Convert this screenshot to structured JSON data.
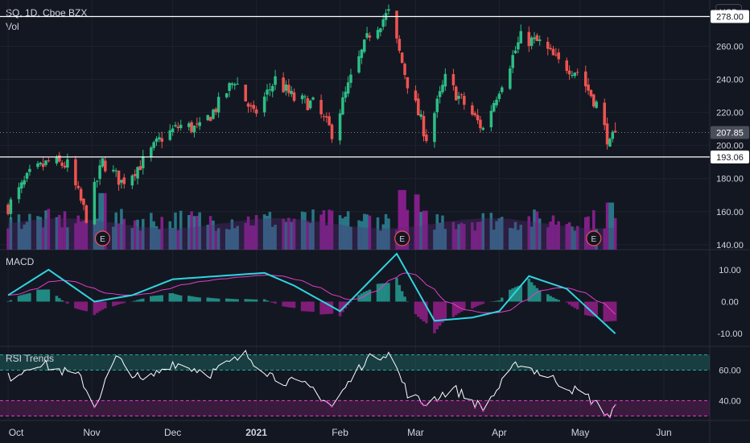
{
  "header": {
    "symbol_line": "SQ, 1D, Cboe BZX",
    "volume_label": "Vol",
    "currency_button": "USD"
  },
  "colors": {
    "background": "#131722",
    "up": "#26a69a",
    "up_candle": "#2ebd85",
    "down": "#ef5350",
    "volume_up": "#2a7a8c",
    "volume_down": "#8a1f8f",
    "macd_line": "#2fd5e0",
    "signal_line": "#e040c8",
    "rsi_line": "#ffffff",
    "rsi_upper_band": "#1f6f68",
    "rsi_lower_band": "#6a2060",
    "hline": "#ffffff",
    "grid": "#1e222d"
  },
  "chart_data": [
    {
      "type": "candlestick",
      "pane": "price",
      "y_axis": {
        "ticks": [
          140,
          160,
          180,
          200,
          220,
          240,
          260,
          278
        ],
        "tick_labels": [
          "140.00",
          "160.00",
          "180.00",
          "200.00",
          "220.00",
          "240.00",
          "260.00"
        ],
        "range": [
          137,
          288
        ]
      },
      "x_axis": {
        "tick_labels": [
          "Oct",
          "Nov",
          "Dec",
          "2021",
          "Feb",
          "Mar",
          "Apr",
          "May",
          "Jun"
        ]
      },
      "horizontal_lines": [
        {
          "value": 278.0,
          "label": "278.00"
        },
        {
          "value": 193.06,
          "label": "193.06"
        }
      ],
      "last_price": {
        "value": 207.85,
        "label": "207.85"
      },
      "earnings_markers": {
        "text": "E",
        "months": [
          "Nov",
          "Feb",
          "May"
        ]
      },
      "close_anchors": [
        [
          "2020-10-01",
          163
        ],
        [
          "2020-10-09",
          182
        ],
        [
          "2020-10-16",
          190
        ],
        [
          "2020-10-23",
          188
        ],
        [
          "2020-10-30",
          157
        ],
        [
          "2020-11-05",
          190
        ],
        [
          "2020-11-12",
          178
        ],
        [
          "2020-11-20",
          190
        ],
        [
          "2020-11-27",
          205
        ],
        [
          "2020-12-04",
          212
        ],
        [
          "2020-12-11",
          210
        ],
        [
          "2020-12-18",
          225
        ],
        [
          "2020-12-24",
          240
        ],
        [
          "2020-12-31",
          218
        ],
        [
          "2021-01-08",
          240
        ],
        [
          "2021-01-15",
          228
        ],
        [
          "2021-01-22",
          225
        ],
        [
          "2021-01-29",
          208
        ],
        [
          "2021-02-05",
          240
        ],
        [
          "2021-02-12",
          268
        ],
        [
          "2021-02-19",
          280
        ],
        [
          "2021-02-26",
          238
        ],
        [
          "2021-03-05",
          205
        ],
        [
          "2021-03-12",
          240
        ],
        [
          "2021-03-19",
          225
        ],
        [
          "2021-03-26",
          210
        ],
        [
          "2021-04-01",
          235
        ],
        [
          "2021-04-09",
          265
        ],
        [
          "2021-04-16",
          262
        ],
        [
          "2021-04-23",
          250
        ],
        [
          "2021-04-30",
          245
        ],
        [
          "2021-05-07",
          225
        ],
        [
          "2021-05-12",
          200
        ],
        [
          "2021-05-14",
          207.85
        ]
      ]
    },
    {
      "type": "bar",
      "pane": "volume",
      "series_name": "Vol",
      "note": "relative volume heights 0-1",
      "spikes": [
        [
          "2020-11-05",
          0.9
        ],
        [
          "2021-02-24",
          0.95
        ],
        [
          "2021-03-01",
          0.88
        ],
        [
          "2021-05-12",
          0.75
        ]
      ]
    },
    {
      "type": "line",
      "pane": "macd",
      "title": "MACD",
      "y_axis": {
        "tick_labels": [
          "10.00",
          "0.00",
          "-10.00"
        ],
        "ticks": [
          10,
          0,
          -10
        ],
        "range": [
          -14,
          16
        ]
      },
      "anchors": [
        [
          "2020-10-01",
          2
        ],
        [
          "2020-10-16",
          10
        ],
        [
          "2020-11-02",
          0
        ],
        [
          "2020-11-16",
          2
        ],
        [
          "2020-12-01",
          7
        ],
        [
          "2020-12-18",
          8
        ],
        [
          "2021-01-04",
          9
        ],
        [
          "2021-01-15",
          5
        ],
        [
          "2021-02-01",
          -3
        ],
        [
          "2021-02-22",
          15
        ],
        [
          "2021-03-08",
          -6
        ],
        [
          "2021-03-22",
          -5
        ],
        [
          "2021-04-01",
          -3
        ],
        [
          "2021-04-12",
          8
        ],
        [
          "2021-04-26",
          4
        ],
        [
          "2021-05-14",
          -10
        ]
      ]
    },
    {
      "type": "line",
      "pane": "rsi",
      "title": "RSI Trends",
      "y_axis": {
        "tick_labels": [
          "60.00",
          "40.00"
        ],
        "ticks": [
          60,
          40
        ],
        "bands": [
          [
            60,
            70
          ],
          [
            30,
            40
          ]
        ],
        "range": [
          27,
          75
        ]
      },
      "anchors": [
        [
          "2020-10-01",
          55
        ],
        [
          "2020-10-12",
          65
        ],
        [
          "2020-10-28",
          55
        ],
        [
          "2020-11-02",
          36
        ],
        [
          "2020-11-10",
          68
        ],
        [
          "2020-11-20",
          52
        ],
        [
          "2020-12-01",
          65
        ],
        [
          "2020-12-15",
          58
        ],
        [
          "2020-12-28",
          70
        ],
        [
          "2021-01-08",
          55
        ],
        [
          "2021-01-22",
          48
        ],
        [
          "2021-01-29",
          36
        ],
        [
          "2021-02-10",
          66
        ],
        [
          "2021-02-19",
          72
        ],
        [
          "2021-02-26",
          45
        ],
        [
          "2021-03-04",
          38
        ],
        [
          "2021-03-15",
          48
        ],
        [
          "2021-03-26",
          35
        ],
        [
          "2021-04-08",
          65
        ],
        [
          "2021-04-20",
          55
        ],
        [
          "2021-05-04",
          42
        ],
        [
          "2021-05-12",
          30
        ],
        [
          "2021-05-14",
          36
        ]
      ]
    }
  ]
}
